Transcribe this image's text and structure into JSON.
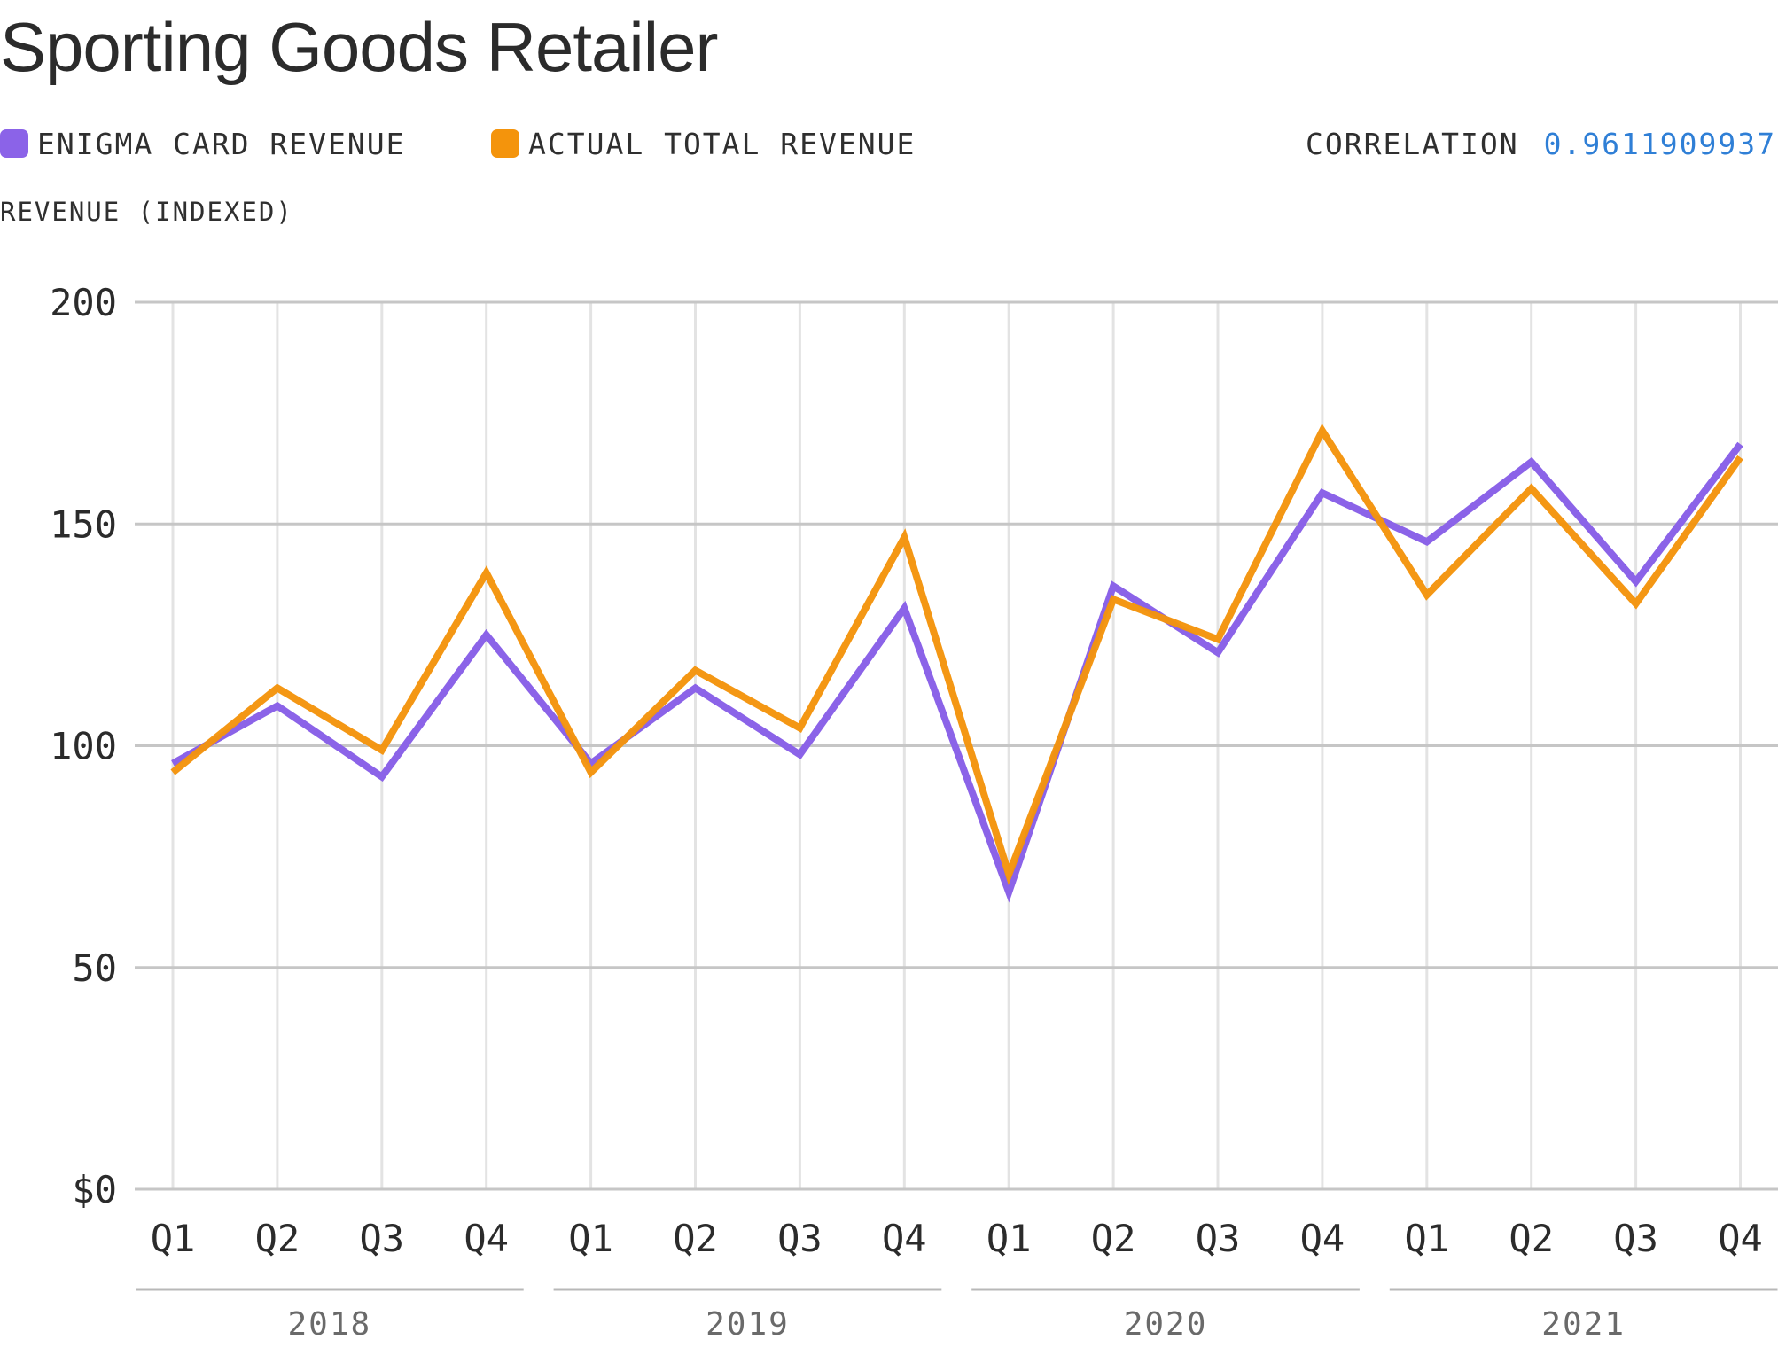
{
  "title": "Sporting Goods Retailer",
  "legend": [
    {
      "label": "ENIGMA CARD REVENUE",
      "color": "#8b63e8"
    },
    {
      "label": "ACTUAL TOTAL REVENUE",
      "color": "#f4940c"
    }
  ],
  "correlation": {
    "label": "CORRELATION",
    "value": "0.9611909937",
    "color": "#2f7fd6"
  },
  "y_axis_title": "REVENUE (INDEXED)",
  "chart_data": {
    "type": "line",
    "title": "Sporting Goods Retailer",
    "xlabel": "",
    "ylabel": "REVENUE (INDEXED)",
    "categories": [
      "Q1",
      "Q2",
      "Q3",
      "Q4",
      "Q1",
      "Q2",
      "Q3",
      "Q4",
      "Q1",
      "Q2",
      "Q3",
      "Q4",
      "Q1",
      "Q2",
      "Q3",
      "Q4"
    ],
    "groups": [
      {
        "label": "2018",
        "start": 0,
        "end": 3
      },
      {
        "label": "2019",
        "start": 4,
        "end": 7
      },
      {
        "label": "2020",
        "start": 8,
        "end": 11
      },
      {
        "label": "2021",
        "start": 12,
        "end": 15
      }
    ],
    "ylim": [
      0,
      200
    ],
    "yticks": [
      0,
      50,
      100,
      150,
      200
    ],
    "ytick_labels": [
      "$0",
      "50",
      "100",
      "150",
      "200"
    ],
    "series": [
      {
        "name": "ENIGMA CARD REVENUE",
        "color": "#8b63e8",
        "values": [
          96,
          109,
          93,
          125,
          96,
          113,
          98,
          131,
          67,
          136,
          121,
          157,
          146,
          164,
          137,
          168
        ]
      },
      {
        "name": "ACTUAL TOTAL REVENUE",
        "color": "#f4940c",
        "values": [
          94,
          113,
          99,
          139,
          94,
          117,
          104,
          147,
          71,
          133,
          124,
          171,
          134,
          158,
          132,
          165
        ]
      }
    ]
  }
}
